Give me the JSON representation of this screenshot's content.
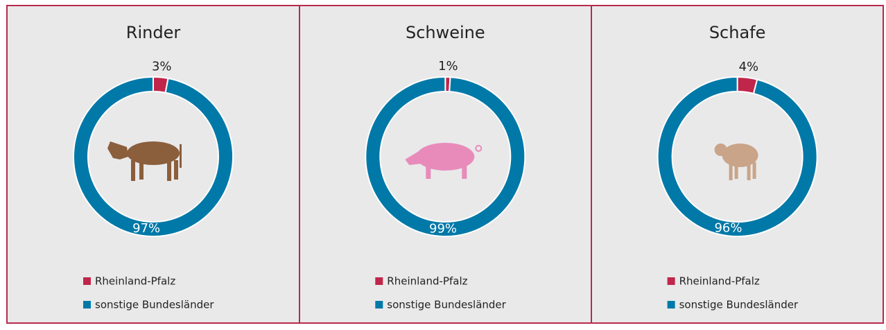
{
  "chart_data": [
    {
      "type": "donut",
      "title": "Rinder",
      "categories": [
        "Rheinland-Pfalz",
        "sonstige Bundesländer"
      ],
      "values": [
        3,
        97
      ],
      "value_labels": [
        "3%",
        "97%"
      ],
      "colors": [
        "#c0264a",
        "#0079a8"
      ]
    },
    {
      "type": "donut",
      "title": "Schweine",
      "categories": [
        "Rheinland-Pfalz",
        "sonstige Bundesländer"
      ],
      "values": [
        1,
        99
      ],
      "value_labels": [
        "1%",
        "99%"
      ],
      "colors": [
        "#c0264a",
        "#0079a8"
      ]
    },
    {
      "type": "donut",
      "title": "Schafe",
      "categories": [
        "Rheinland-Pfalz",
        "sonstige Bundesländer"
      ],
      "values": [
        4,
        96
      ],
      "value_labels": [
        "4%",
        "96%"
      ],
      "colors": [
        "#c0264a",
        "#0079a8"
      ]
    }
  ]
}
